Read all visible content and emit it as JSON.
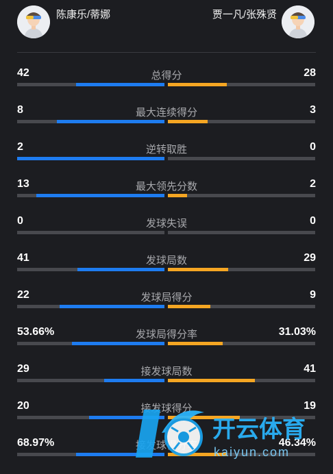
{
  "header": {
    "left_team": "陈康乐/蒂娜",
    "right_team": "贾一凡/张殊贤"
  },
  "colors": {
    "background": "#1c1d21",
    "left_bar": "#1e7cf0",
    "right_bar": "#f5a623",
    "track": "#48494e"
  },
  "stats": [
    {
      "label": "总得分",
      "left": "42",
      "right": "28",
      "left_share": 0.6,
      "right_share": 0.4
    },
    {
      "label": "最大连续得分",
      "left": "8",
      "right": "3",
      "left_share": 0.73,
      "right_share": 0.27
    },
    {
      "label": "逆转取胜",
      "left": "2",
      "right": "0",
      "left_share": 1.0,
      "right_share": 0.0
    },
    {
      "label": "最大领先分数",
      "left": "13",
      "right": "2",
      "left_share": 0.87,
      "right_share": 0.13
    },
    {
      "label": "发球失误",
      "left": "0",
      "right": "0",
      "left_share": 0.0,
      "right_share": 0.0
    },
    {
      "label": "发球局数",
      "left": "41",
      "right": "29",
      "left_share": 0.59,
      "right_share": 0.41
    },
    {
      "label": "发球局得分",
      "left": "22",
      "right": "9",
      "left_share": 0.71,
      "right_share": 0.29
    },
    {
      "label": "发球局得分率",
      "left": "53.66%",
      "right": "31.03%",
      "left_share": 0.63,
      "right_share": 0.37
    },
    {
      "label": "接发球局数",
      "left": "29",
      "right": "41",
      "left_share": 0.41,
      "right_share": 0.59
    },
    {
      "label": "接发球得分",
      "left": "20",
      "right": "19",
      "left_share": 0.51,
      "right_share": 0.49
    },
    {
      "label": "接发球得分率",
      "left": "68.97%",
      "right": "46.34%",
      "left_share": 0.6,
      "right_share": 0.4
    }
  ],
  "watermark": {
    "brand": "开云体育",
    "site": "kaiyun.com"
  }
}
